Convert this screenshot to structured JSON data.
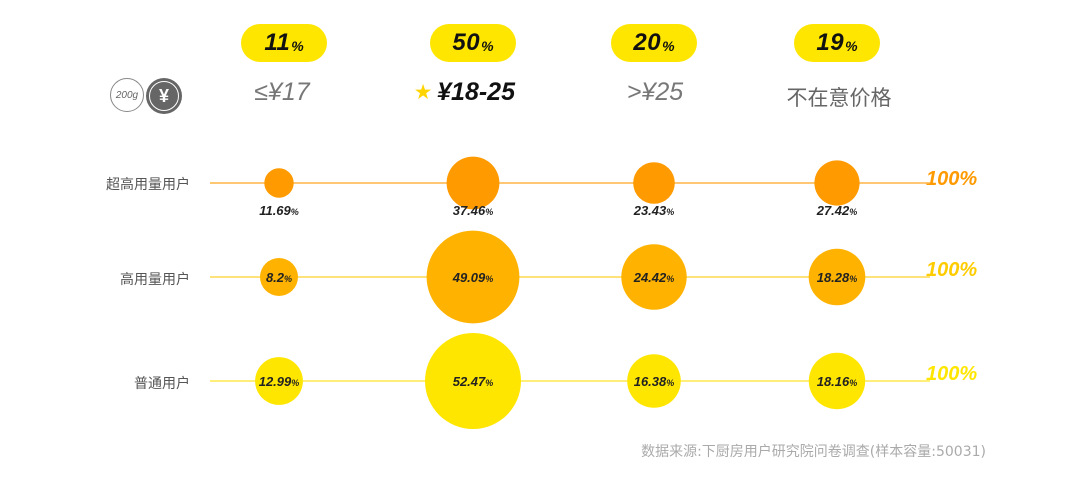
{
  "chart_data": {
    "type": "bubble",
    "columns": [
      {
        "share_value": "11",
        "share_unit": "%",
        "price_label": "≤¥17",
        "highlighted": false
      },
      {
        "share_value": "50",
        "share_unit": "%",
        "price_label": "¥18-25",
        "highlighted": true
      },
      {
        "share_value": "20",
        "share_unit": "%",
        "price_label": ">¥25",
        "highlighted": false
      },
      {
        "share_value": "19",
        "share_unit": "%",
        "price_label": "不在意价格",
        "highlighted": false
      }
    ],
    "series": [
      {
        "name": "超高用量用户",
        "values": [
          11.69,
          37.46,
          23.43,
          27.42
        ],
        "total_label": "100%",
        "color": "#ff9a00",
        "label_position": "below"
      },
      {
        "name": "高用量用户",
        "values": [
          8.2,
          49.09,
          24.42,
          18.28
        ],
        "total_label": "100%",
        "color": "#ffb300",
        "label_position": "inside"
      },
      {
        "name": "普通用户",
        "values": [
          12.99,
          52.47,
          16.38,
          18.16
        ],
        "total_label": "100%",
        "color": "#ffe600",
        "label_position": "inside"
      }
    ],
    "value_suffix": "%"
  },
  "header": {
    "weight_icon_text": "200g",
    "currency_icon_text": "¥",
    "star_icon": "star-icon"
  },
  "source_note": "数据来源:下厨房用户研究院问卷调查(样本容量:50031)"
}
